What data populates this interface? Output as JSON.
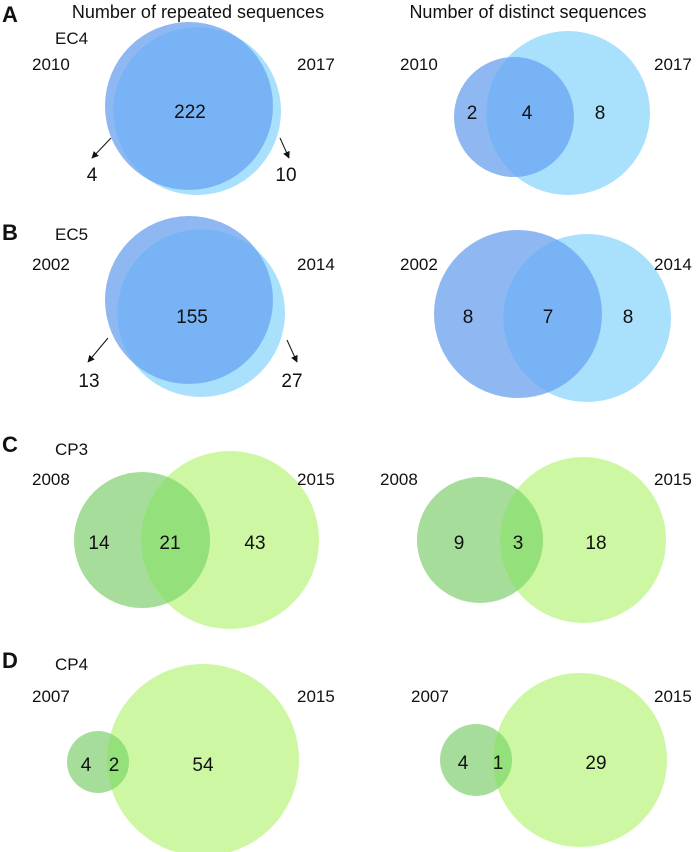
{
  "headers": {
    "left": "Number of repeated sequences",
    "right": "Number of distinct sequences"
  },
  "palette": {
    "blue_first": "#8fb8f2",
    "blue_second": "#a9e0fb",
    "blue_overlap": "#78b4f5",
    "green_first": "#a6dd9a",
    "green_second": "#cdf7a3",
    "green_overlap": "#94e07a"
  },
  "panels": [
    {
      "letter": "A",
      "subject": "EC4",
      "color_scheme": "blue",
      "repeated": {
        "year_a": "2010",
        "year_b": "2017",
        "only_a": "4",
        "shared": "222",
        "only_b": "10"
      },
      "distinct": {
        "year_a": "2010",
        "year_b": "2017",
        "only_a": "2",
        "shared": "4",
        "only_b": "8"
      }
    },
    {
      "letter": "B",
      "subject": "EC5",
      "color_scheme": "blue",
      "repeated": {
        "year_a": "2002",
        "year_b": "2014",
        "only_a": "13",
        "shared": "155",
        "only_b": "27"
      },
      "distinct": {
        "year_a": "2002",
        "year_b": "2014",
        "only_a": "8",
        "shared": "7",
        "only_b": "8"
      }
    },
    {
      "letter": "C",
      "subject": "CP3",
      "color_scheme": "green",
      "repeated": {
        "year_a": "2008",
        "year_b": "2015",
        "only_a": "14",
        "shared": "21",
        "only_b": "43"
      },
      "distinct": {
        "year_a": "2008",
        "year_b": "2015",
        "only_a": "9",
        "shared": "3",
        "only_b": "18"
      }
    },
    {
      "letter": "D",
      "subject": "CP4",
      "color_scheme": "green",
      "repeated": {
        "year_a": "2007",
        "year_b": "2015",
        "only_a": "4",
        "shared": "2",
        "only_b": "54"
      },
      "distinct": {
        "year_a": "2007",
        "year_b": "2015",
        "only_a": "4",
        "shared": "1",
        "only_b": "29"
      }
    }
  ]
}
